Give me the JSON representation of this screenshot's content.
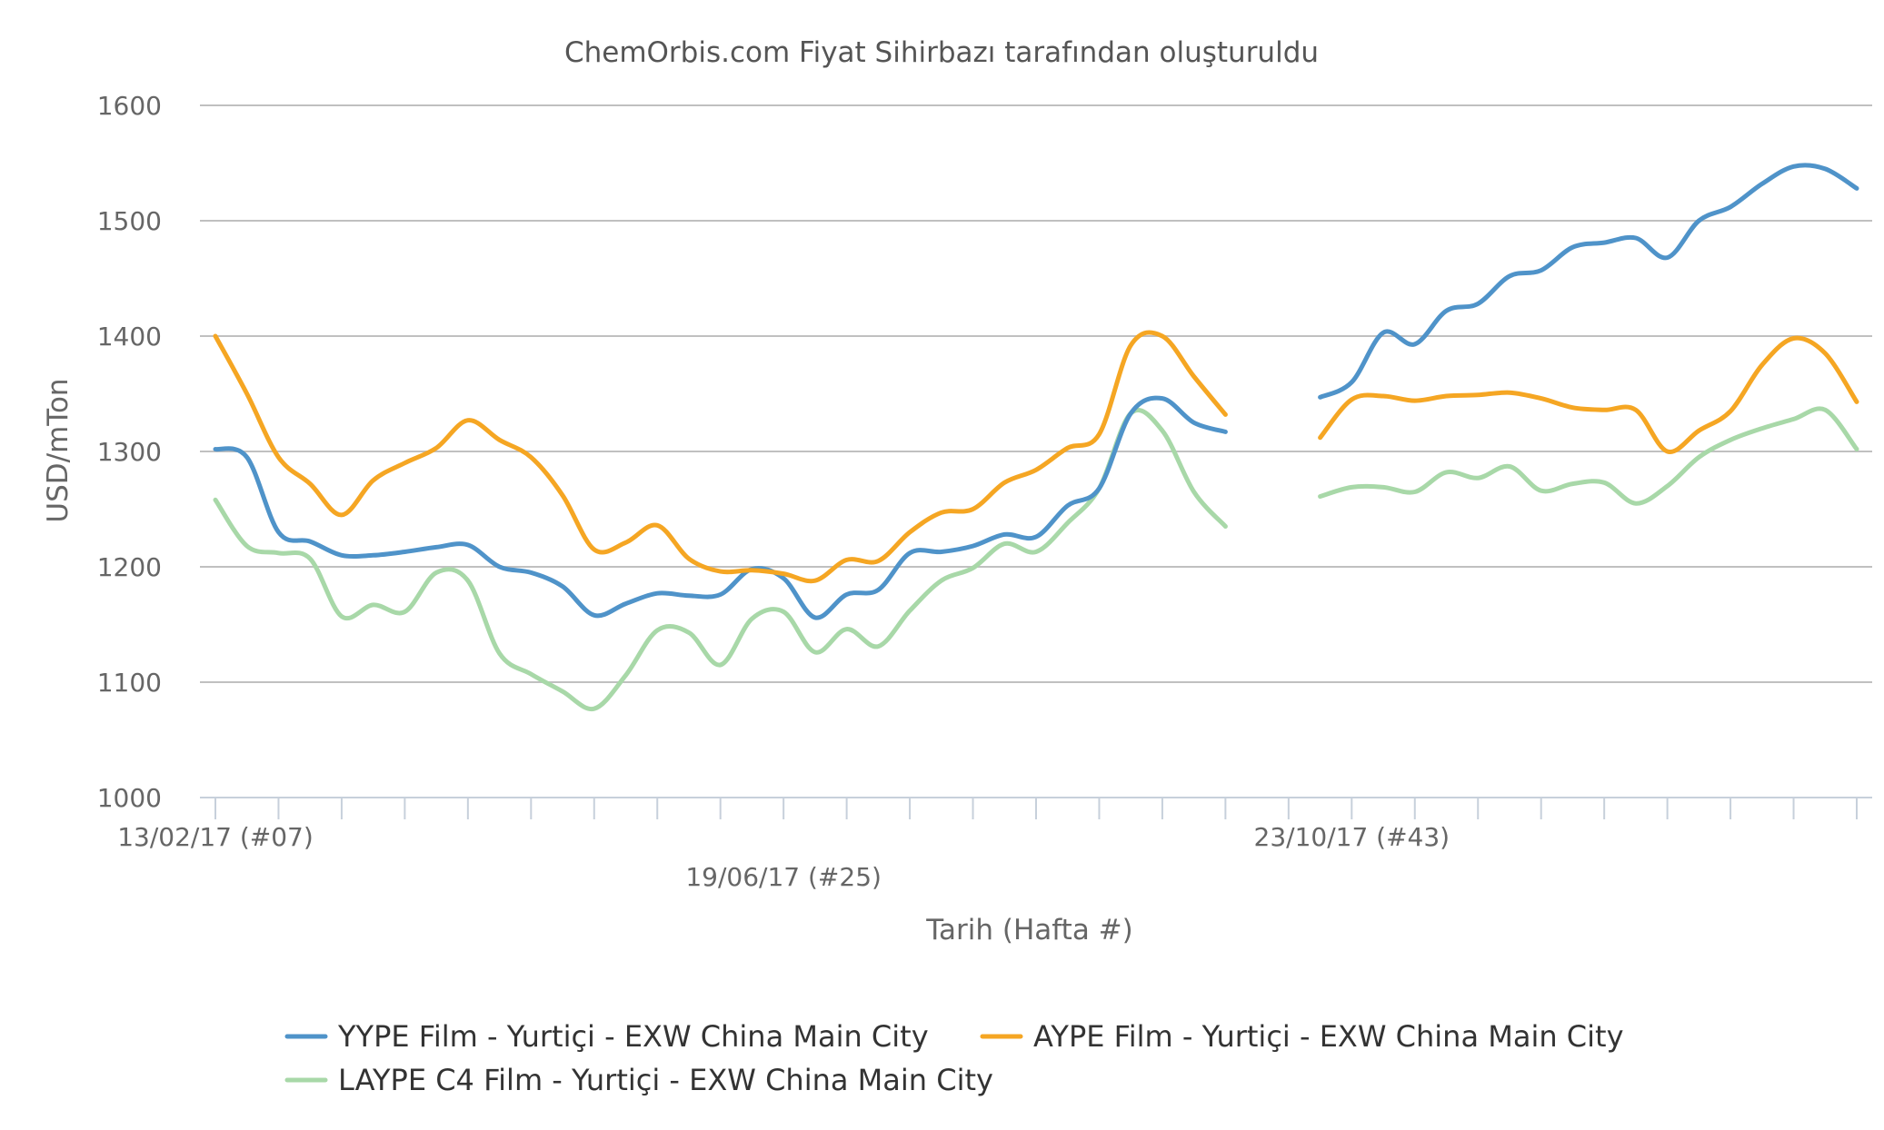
{
  "chart_data": {
    "type": "line",
    "subtitle": "ChemOrbis.com Fiyat Sihirbazı tarafından oluşturuldu",
    "xlabel": "Tarih (Hafta #)",
    "ylabel": "USD/mTon",
    "ylim": [
      1000,
      1600
    ],
    "yticks": [
      1000,
      1100,
      1200,
      1300,
      1400,
      1500,
      1600
    ],
    "x_start_label": "13/02/17 (#07)",
    "x_tick_labels": [
      {
        "week_index": 0,
        "label": "13/02/17 (#07)",
        "row": 1
      },
      {
        "week_index": 18,
        "label": "19/06/17 (#25)",
        "row": 2
      },
      {
        "week_index": 36,
        "label": "23/10/17 (#43)",
        "row": 1
      }
    ],
    "week_count": 52,
    "grid": true,
    "legend_position": "bottom",
    "series": [
      {
        "name": "YYPE Film - Yurtiçi - EXW China Main City",
        "color": "#4f93c9",
        "values": [
          1302,
          1295,
          1230,
          1222,
          1210,
          1210,
          1213,
          1217,
          1219,
          1200,
          1195,
          1183,
          1158,
          1168,
          1177,
          1175,
          1176,
          1198,
          1190,
          1156,
          1176,
          1180,
          1212,
          1213,
          1218,
          1228,
          1226,
          1253,
          1268,
          1333,
          1346,
          1325,
          1317,
          null,
          null,
          1347,
          1360,
          1403,
          1393,
          1422,
          1428,
          1452,
          1457,
          1477,
          1481,
          1485,
          1468,
          1500,
          1512,
          1532,
          1547,
          1545,
          1528
        ]
      },
      {
        "name": "AYPE Film - Yurtiçi - EXW China Main City",
        "color": "#f5a623",
        "values": [
          1400,
          1350,
          1295,
          1272,
          1245,
          1275,
          1290,
          1303,
          1327,
          1310,
          1295,
          1262,
          1215,
          1221,
          1236,
          1207,
          1196,
          1197,
          1194,
          1188,
          1206,
          1205,
          1230,
          1247,
          1250,
          1273,
          1284,
          1303,
          1315,
          1392,
          1400,
          1365,
          1332,
          null,
          null,
          1312,
          1345,
          1348,
          1344,
          1348,
          1349,
          1351,
          1346,
          1338,
          1336,
          1336,
          1300,
          1318,
          1335,
          1375,
          1398,
          1385,
          1343
        ]
      },
      {
        "name": "LAYPE C4 Film - Yurtiçi - EXW China Main City",
        "color": "#a8d8a8",
        "values": [
          1258,
          1218,
          1212,
          1207,
          1157,
          1167,
          1161,
          1195,
          1188,
          1125,
          1107,
          1092,
          1077,
          1106,
          1145,
          1143,
          1115,
          1155,
          1161,
          1126,
          1146,
          1131,
          1162,
          1188,
          1199,
          1220,
          1213,
          1238,
          1268,
          1333,
          1318,
          1265,
          1235,
          null,
          null,
          1261,
          1269,
          1269,
          1265,
          1282,
          1277,
          1287,
          1266,
          1272,
          1273,
          1255,
          1270,
          1295,
          1310,
          1320,
          1328,
          1336,
          1302
        ]
      }
    ]
  }
}
